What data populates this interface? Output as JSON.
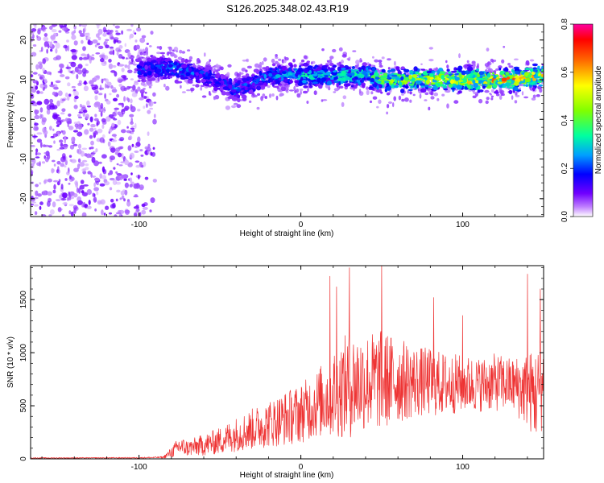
{
  "title": "S126.2025.348.02.43.R19",
  "colors": {
    "snr_line": "#ee3333",
    "axis": "#000000"
  },
  "chart_data": [
    {
      "type": "heatmap",
      "name": "spectrogram",
      "xlabel": "Height of straight line (km)",
      "ylabel": "Frequency (Hz)",
      "xlim": [
        -167,
        150
      ],
      "ylim": [
        -24.5,
        24
      ],
      "x_ticks": [
        -100,
        0,
        100
      ],
      "y_ticks": [
        -20,
        -10,
        0,
        10,
        20
      ],
      "colorbar": {
        "label": "Normalized spectral amplitude",
        "range": [
          0,
          0.8
        ],
        "ticks": [
          0.0,
          0.2,
          0.4,
          0.6,
          0.8
        ],
        "tick_labels": [
          "0.0",
          "0.2",
          "0.4",
          "0.6",
          "0.8"
        ]
      },
      "dominant_band": {
        "x": [
          -100,
          -80,
          -60,
          -50,
          -40,
          -30,
          -20,
          -10,
          0,
          20,
          40,
          50,
          70,
          90,
          110,
          130,
          150
        ],
        "freq_hz": [
          12.5,
          13,
          11,
          9.5,
          7.5,
          9,
          11,
          11.5,
          11,
          11,
          11,
          10,
          10,
          10,
          10,
          10,
          11
        ],
        "amplitude": [
          0.18,
          0.24,
          0.2,
          0.17,
          0.22,
          0.2,
          0.24,
          0.26,
          0.3,
          0.32,
          0.34,
          0.42,
          0.46,
          0.5,
          0.55,
          0.6,
          0.5
        ]
      },
      "noise_region": {
        "x_from": -167,
        "x_to": -90,
        "amplitude": 0.06
      }
    },
    {
      "type": "line",
      "name": "snr",
      "xlabel": "Height of straight line (km)",
      "ylabel": "SNR (10 * v/v)",
      "xlim": [
        -167,
        150
      ],
      "ylim": [
        0,
        1820
      ],
      "x_ticks": [
        -100,
        0,
        100
      ],
      "y_ticks": [
        0,
        500,
        1000,
        1500
      ],
      "envelope": {
        "x": [
          -167,
          -100,
          -85,
          -80,
          -75,
          -70,
          -60,
          -50,
          -40,
          -30,
          -20,
          -10,
          0,
          10,
          20,
          30,
          40,
          50,
          60,
          70,
          80,
          90,
          100,
          110,
          120,
          130,
          140,
          145,
          150
        ],
        "mean": [
          8,
          10,
          15,
          60,
          120,
          100,
          130,
          170,
          230,
          280,
          330,
          380,
          430,
          520,
          620,
          700,
          730,
          740,
          740,
          730,
          720,
          700,
          710,
          700,
          720,
          700,
          650,
          600,
          700
        ],
        "spread": [
          5,
          6,
          10,
          60,
          110,
          90,
          120,
          150,
          190,
          230,
          260,
          300,
          330,
          380,
          500,
          600,
          550,
          560,
          480,
          400,
          380,
          350,
          320,
          300,
          320,
          300,
          420,
          520,
          480
        ]
      },
      "peaks": [
        {
          "x": 18,
          "y": 1720
        },
        {
          "x": 22,
          "y": 1620
        },
        {
          "x": 30,
          "y": 1800
        },
        {
          "x": 50,
          "y": 1830
        },
        {
          "x": 82,
          "y": 1520
        },
        {
          "x": 100,
          "y": 1350
        },
        {
          "x": 140,
          "y": 1740
        },
        {
          "x": 148,
          "y": 1600
        }
      ]
    }
  ]
}
